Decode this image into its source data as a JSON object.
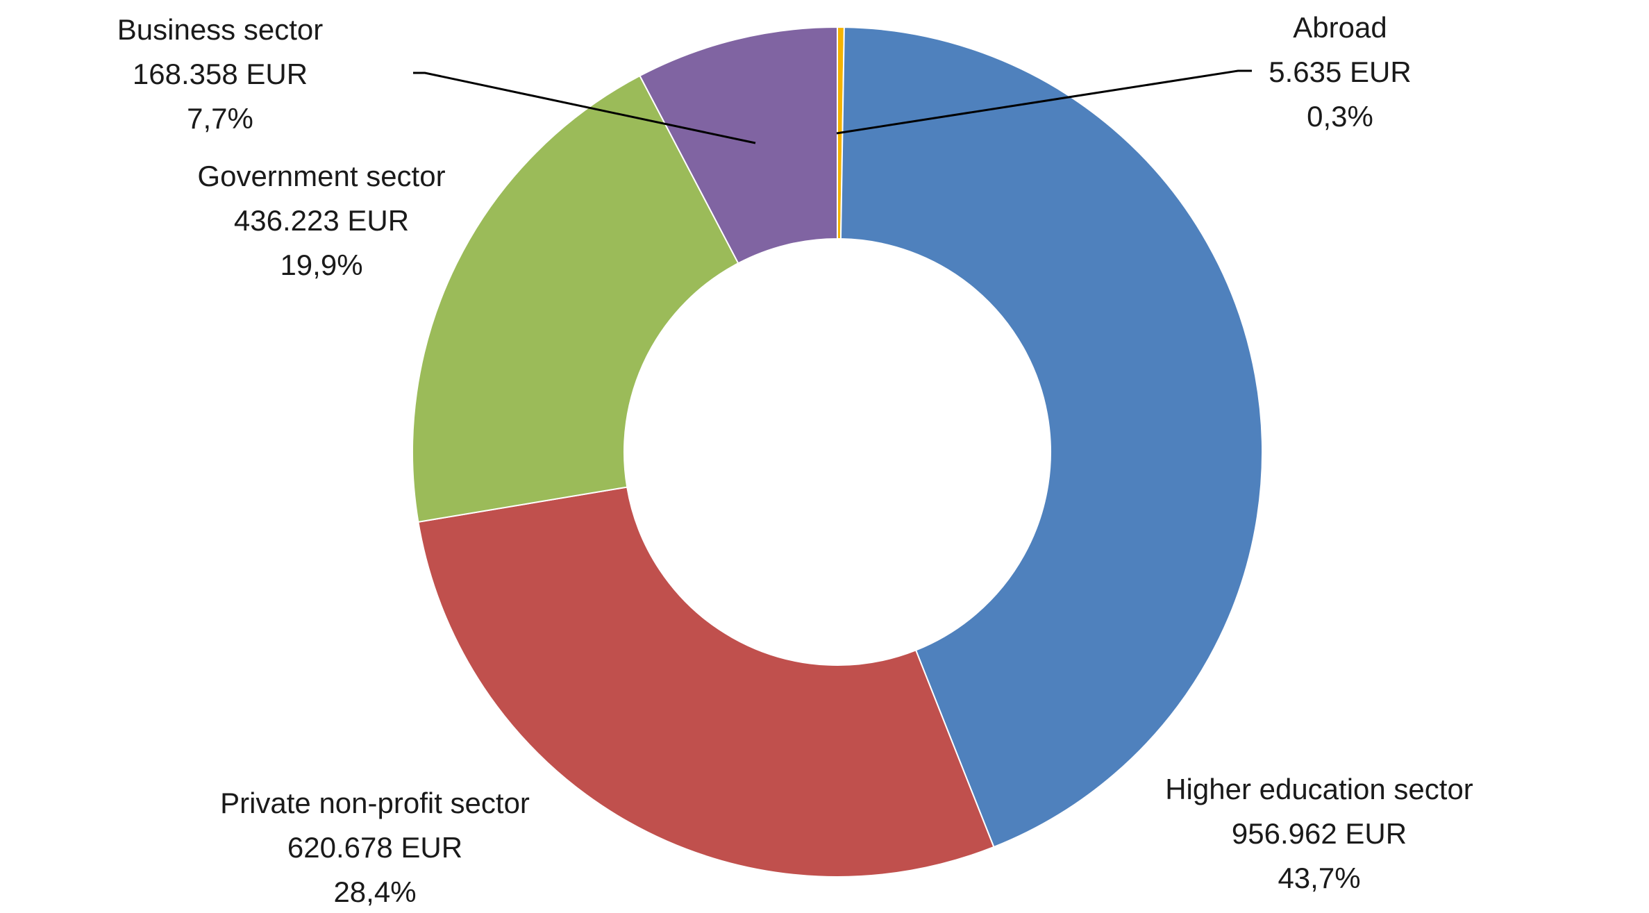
{
  "chart_data": {
    "type": "pie",
    "style": "donut",
    "unit": "EUR",
    "slices": [
      {
        "name": "Abroad",
        "value": 5635,
        "value_label": "5.635 EUR",
        "percent": 0.3,
        "percent_label": "0,3%",
        "color": "#F5B300"
      },
      {
        "name": "Higher education sector",
        "value": 956962,
        "value_label": "956.962 EUR",
        "percent": 43.7,
        "percent_label": "43,7%",
        "color": "#4F81BD"
      },
      {
        "name": "Private non-profit sector",
        "value": 620678,
        "value_label": "620.678 EUR",
        "percent": 28.4,
        "percent_label": "28,4%",
        "color": "#C0504D"
      },
      {
        "name": "Government sector",
        "value": 436223,
        "value_label": "436.223 EUR",
        "percent": 19.9,
        "percent_label": "19,9%",
        "color": "#9BBB59"
      },
      {
        "name": "Business sector",
        "value": 168358,
        "value_label": "168.358 EUR",
        "percent": 7.7,
        "percent_label": "7,7%",
        "color": "#8064A2"
      }
    ]
  }
}
